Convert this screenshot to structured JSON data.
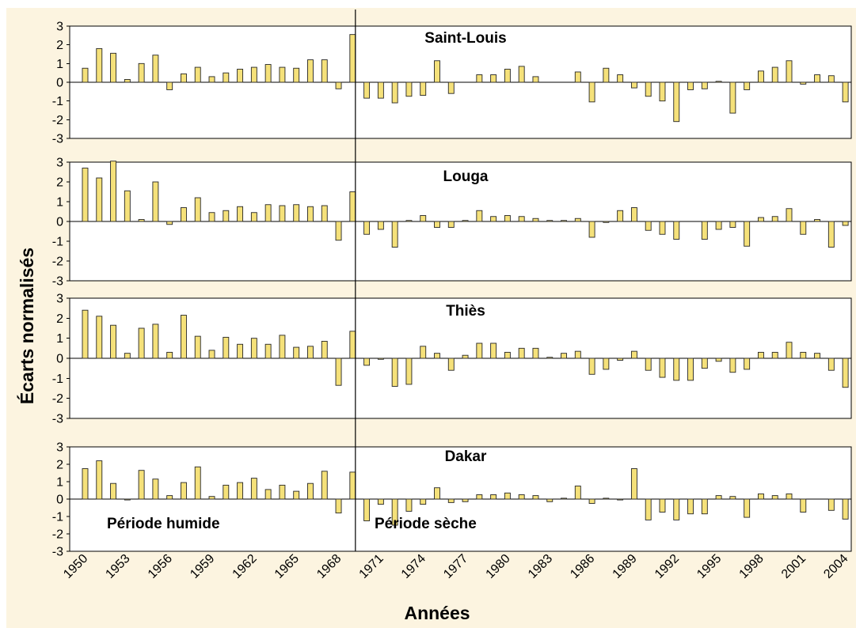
{
  "chart_data": {
    "type": "bar",
    "xlabel": "Années",
    "ylabel": "Écarts normalisés",
    "ylim": [
      -3,
      3
    ],
    "yticks": [
      3,
      2,
      1,
      0,
      -1,
      -2,
      -3
    ],
    "grid": false,
    "categories": [
      1950,
      1951,
      1952,
      1953,
      1954,
      1955,
      1956,
      1957,
      1958,
      1959,
      1960,
      1961,
      1962,
      1963,
      1964,
      1965,
      1966,
      1967,
      1968,
      1969,
      1970,
      1971,
      1972,
      1973,
      1974,
      1975,
      1976,
      1977,
      1978,
      1979,
      1980,
      1981,
      1982,
      1983,
      1984,
      1985,
      1986,
      1987,
      1988,
      1989,
      1990,
      1991,
      1992,
      1993,
      1994,
      1995,
      1996,
      1997,
      1998,
      1999,
      2000,
      2001,
      2002,
      2003,
      2004
    ],
    "xticks": [
      1950,
      1953,
      1956,
      1959,
      1962,
      1965,
      1968,
      1971,
      1974,
      1977,
      1980,
      1983,
      1986,
      1989,
      1992,
      1995,
      1998,
      2001,
      2004
    ],
    "period_break_after": 1969,
    "annotations": {
      "wet": "Période humide",
      "dry": "Période sèche"
    },
    "series": [
      {
        "name": "Saint-Louis",
        "values": [
          0.75,
          1.8,
          1.55,
          0.15,
          1.0,
          1.45,
          -0.4,
          0.45,
          0.8,
          0.3,
          0.5,
          0.7,
          0.8,
          0.95,
          0.8,
          0.75,
          1.2,
          1.2,
          -0.35,
          2.55,
          -0.85,
          -0.85,
          -1.1,
          -0.75,
          -0.7,
          1.15,
          -0.6,
          0,
          0.4,
          0.4,
          0.7,
          0.85,
          0.3,
          0,
          0,
          0.55,
          -1.05,
          0.75,
          0.4,
          -0.3,
          -0.75,
          -1.0,
          -2.1,
          -0.4,
          -0.35,
          0.05,
          -1.65,
          -0.4,
          0.6,
          0.8,
          1.15,
          -0.1,
          0.4,
          0.35,
          -1.05
        ]
      },
      {
        "name": "Louga",
        "values": [
          2.7,
          2.2,
          3.05,
          1.55,
          0.1,
          2.0,
          -0.15,
          0.7,
          1.2,
          0.45,
          0.55,
          0.75,
          0.45,
          0.85,
          0.8,
          0.85,
          0.75,
          0.8,
          -0.95,
          1.5,
          -0.65,
          -0.4,
          -1.3,
          0.05,
          0.3,
          -0.3,
          -0.3,
          0.05,
          0.55,
          0.25,
          0.3,
          0.25,
          0.15,
          0.05,
          0.05,
          0.15,
          -0.8,
          -0.05,
          0.55,
          0.7,
          -0.45,
          -0.65,
          -0.9,
          0,
          -0.9,
          -0.4,
          -0.3,
          -1.25,
          0.2,
          0.25,
          0.65,
          -0.65,
          0.1,
          -1.3,
          -0.2
        ]
      },
      {
        "name": "Thiès",
        "values": [
          2.4,
          2.1,
          1.65,
          0.25,
          1.5,
          1.7,
          0.3,
          2.15,
          1.1,
          0.4,
          1.05,
          0.7,
          1.0,
          0.7,
          1.15,
          0.55,
          0.6,
          0.85,
          -1.35,
          1.35,
          -0.35,
          -0.05,
          -1.4,
          -1.3,
          0.6,
          0.25,
          -0.6,
          0.15,
          0.75,
          0.75,
          0.3,
          0.5,
          0.5,
          0.05,
          0.25,
          0.35,
          -0.8,
          -0.55,
          -0.1,
          0.35,
          -0.6,
          -0.95,
          -1.1,
          -1.1,
          -0.5,
          -0.15,
          -0.7,
          -0.55,
          0.3,
          0.3,
          0.8,
          0.3,
          0.25,
          -0.6,
          -1.45
        ]
      },
      {
        "name": "Dakar",
        "values": [
          1.75,
          2.2,
          0.9,
          -0.05,
          1.65,
          1.15,
          0.2,
          0.95,
          1.85,
          0.15,
          0.8,
          0.95,
          1.2,
          0.55,
          0.8,
          0.45,
          0.9,
          1.6,
          -0.8,
          1.55,
          -1.25,
          -0.3,
          -1.5,
          -0.7,
          -0.3,
          0.65,
          -0.2,
          -0.15,
          0.25,
          0.25,
          0.35,
          0.25,
          0.2,
          -0.15,
          0.05,
          0.75,
          -0.25,
          0.05,
          -0.05,
          1.75,
          -1.2,
          -0.75,
          -1.2,
          -0.85,
          -0.85,
          0.2,
          0.15,
          -1.05,
          0.3,
          0.2,
          0.3,
          -0.75,
          0,
          -0.65,
          -1.15
        ]
      }
    ],
    "colors": {
      "background": "#fcf4e0",
      "plot_background": "#ffffff",
      "bar_fill": "#f5e17a",
      "bar_stroke": "#262626",
      "axis": "#000000"
    }
  }
}
